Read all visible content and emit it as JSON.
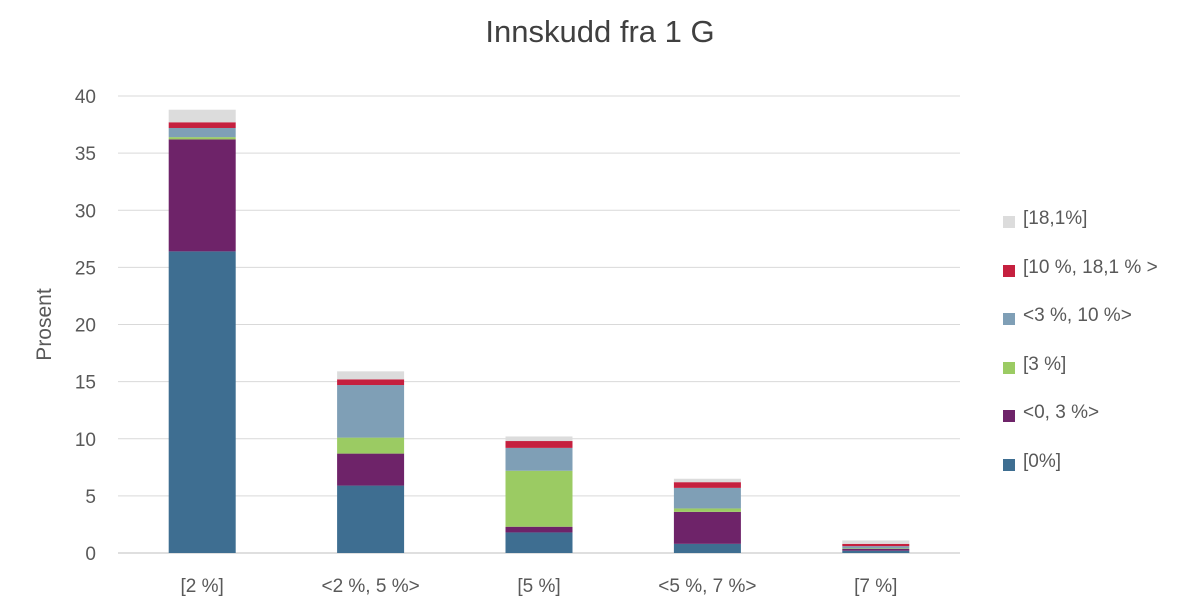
{
  "chart_data": {
    "type": "bar",
    "stacked": true,
    "title": "Innskudd fra 1 G",
    "xlabel": "",
    "ylabel": "Prosent",
    "ylim": [
      0,
      40
    ],
    "yticks": [
      0,
      5,
      10,
      15,
      20,
      25,
      30,
      35,
      40
    ],
    "grid": true,
    "legend_position": "right",
    "categories": [
      "[2 %]",
      "<2 %, 5 %>",
      "[5 %]",
      "<5 %, 7 %>",
      "[7 %]"
    ],
    "series": [
      {
        "name": "[0%]",
        "color": "#3E6E91",
        "values": [
          26.4,
          5.9,
          1.8,
          0.8,
          0.2
        ]
      },
      {
        "name": "<0, 3 %>",
        "color": "#6E2369",
        "values": [
          9.8,
          2.8,
          0.5,
          2.8,
          0.15
        ]
      },
      {
        "name": "[3 %]",
        "color": "#9BCB63",
        "values": [
          0.2,
          1.4,
          4.9,
          0.3,
          0.05
        ]
      },
      {
        "name": "<3 %, 10 %>",
        "color": "#7F9FB6",
        "values": [
          0.8,
          4.6,
          2.0,
          1.8,
          0.2
        ]
      },
      {
        "name": "[10 %, 18,1 % >",
        "color": "#C5203F",
        "values": [
          0.5,
          0.5,
          0.6,
          0.5,
          0.2
        ]
      },
      {
        "name": "[18,1%]",
        "color": "#DCDCDC",
        "values": [
          1.1,
          0.7,
          0.4,
          0.3,
          0.3
        ]
      }
    ]
  }
}
